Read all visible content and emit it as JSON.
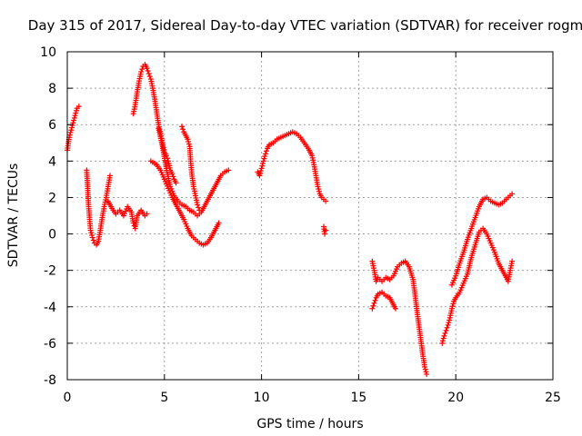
{
  "chart_data": {
    "type": "scatter",
    "title": "Day 315 of 2017, Sidereal Day-to-day VTEC variation (SDTVAR) for receiver rogm",
    "xlabel": "GPS time / hours",
    "ylabel": "SDTVAR / TECUs",
    "xlim": [
      0,
      25
    ],
    "ylim": [
      -8,
      10
    ],
    "xticks": [
      0,
      5,
      10,
      15,
      20,
      25
    ],
    "yticks": [
      -8,
      -6,
      -4,
      -2,
      0,
      2,
      4,
      6,
      8,
      10
    ],
    "grid": true,
    "marker": "plus",
    "marker_color": "#ff0000",
    "series": [
      {
        "segments": [
          [
            [
              0.0,
              4.6
            ],
            [
              0.1,
              5.3
            ],
            [
              0.2,
              5.7
            ],
            [
              0.3,
              6.1
            ],
            [
              0.4,
              6.5
            ],
            [
              0.5,
              6.9
            ],
            [
              0.6,
              7.0
            ]
          ],
          [
            [
              1.0,
              3.5
            ],
            [
              1.05,
              2.5
            ],
            [
              1.1,
              1.5
            ],
            [
              1.15,
              0.8
            ],
            [
              1.2,
              0.2
            ],
            [
              1.3,
              -0.2
            ],
            [
              1.4,
              -0.5
            ],
            [
              1.5,
              -0.6
            ],
            [
              1.6,
              -0.4
            ],
            [
              1.7,
              0.2
            ],
            [
              1.8,
              0.9
            ],
            [
              1.9,
              1.5
            ],
            [
              2.0,
              2.0
            ],
            [
              2.1,
              2.6
            ],
            [
              2.2,
              3.2
            ]
          ],
          [
            [
              2.1,
              1.8
            ],
            [
              2.3,
              1.4
            ],
            [
              2.5,
              1.1
            ],
            [
              2.7,
              1.3
            ],
            [
              2.9,
              1.0
            ],
            [
              3.1,
              1.5
            ],
            [
              3.3,
              1.2
            ],
            [
              3.4,
              0.6
            ],
            [
              3.5,
              0.3
            ],
            [
              3.6,
              1.0
            ],
            [
              3.8,
              1.3
            ],
            [
              4.0,
              1.0
            ],
            [
              4.1,
              1.1
            ]
          ],
          [
            [
              3.4,
              6.6
            ],
            [
              3.5,
              7.1
            ],
            [
              3.6,
              7.8
            ],
            [
              3.7,
              8.4
            ],
            [
              3.8,
              8.9
            ],
            [
              3.9,
              9.2
            ],
            [
              4.0,
              9.3
            ],
            [
              4.1,
              9.1
            ],
            [
              4.2,
              8.8
            ],
            [
              4.3,
              8.5
            ],
            [
              4.4,
              8.0
            ],
            [
              4.5,
              7.4
            ],
            [
              4.6,
              6.7
            ],
            [
              4.7,
              6.0
            ],
            [
              4.8,
              5.5
            ],
            [
              4.9,
              5.0
            ],
            [
              5.0,
              4.5
            ],
            [
              5.1,
              4.3
            ],
            [
              5.2,
              4.0
            ],
            [
              5.3,
              3.5
            ],
            [
              5.4,
              3.3
            ],
            [
              5.5,
              3.0
            ],
            [
              5.6,
              2.8
            ]
          ],
          [
            [
              4.3,
              4.0
            ],
            [
              4.6,
              3.8
            ],
            [
              4.8,
              3.5
            ],
            [
              5.0,
              3.0
            ],
            [
              5.2,
              2.5
            ],
            [
              5.4,
              2.0
            ],
            [
              5.6,
              1.6
            ],
            [
              5.8,
              1.2
            ],
            [
              6.0,
              0.8
            ],
            [
              6.2,
              0.3
            ],
            [
              6.4,
              -0.1
            ],
            [
              6.6,
              -0.3
            ],
            [
              6.8,
              -0.5
            ],
            [
              7.0,
              -0.6
            ],
            [
              7.2,
              -0.5
            ],
            [
              7.4,
              -0.2
            ],
            [
              7.6,
              0.2
            ],
            [
              7.8,
              0.6
            ]
          ],
          [
            [
              4.7,
              5.8
            ],
            [
              4.9,
              4.8
            ],
            [
              5.1,
              3.6
            ],
            [
              5.3,
              2.6
            ],
            [
              5.5,
              2.1
            ],
            [
              5.7,
              1.8
            ],
            [
              5.9,
              1.6
            ],
            [
              6.1,
              1.5
            ],
            [
              6.3,
              1.3
            ],
            [
              6.5,
              1.2
            ],
            [
              6.7,
              1.0
            ],
            [
              6.9,
              1.2
            ],
            [
              7.1,
              1.6
            ],
            [
              7.3,
              2.0
            ],
            [
              7.5,
              2.4
            ],
            [
              7.7,
              2.8
            ],
            [
              7.9,
              3.2
            ],
            [
              8.1,
              3.4
            ],
            [
              8.3,
              3.5
            ]
          ],
          [
            [
              5.9,
              5.9
            ],
            [
              6.0,
              5.6
            ],
            [
              6.1,
              5.4
            ],
            [
              6.2,
              5.2
            ],
            [
              6.3,
              4.8
            ],
            [
              6.35,
              4.0
            ],
            [
              6.4,
              3.4
            ],
            [
              6.5,
              2.6
            ],
            [
              6.6,
              2.1
            ],
            [
              6.7,
              1.6
            ],
            [
              6.8,
              1.3
            ]
          ],
          [
            [
              9.8,
              3.4
            ],
            [
              9.9,
              3.2
            ],
            [
              10.0,
              3.6
            ],
            [
              10.1,
              4.0
            ],
            [
              10.2,
              4.4
            ],
            [
              10.3,
              4.7
            ],
            [
              10.4,
              4.9
            ],
            [
              10.6,
              5.0
            ],
            [
              10.8,
              5.2
            ],
            [
              11.0,
              5.3
            ],
            [
              11.2,
              5.4
            ],
            [
              11.4,
              5.5
            ],
            [
              11.6,
              5.6
            ],
            [
              11.8,
              5.5
            ],
            [
              12.0,
              5.3
            ],
            [
              12.2,
              5.0
            ],
            [
              12.4,
              4.7
            ],
            [
              12.6,
              4.3
            ],
            [
              12.7,
              3.8
            ],
            [
              12.8,
              3.2
            ],
            [
              12.9,
              2.6
            ],
            [
              13.0,
              2.2
            ],
            [
              13.1,
              2.0
            ],
            [
              13.2,
              1.9
            ],
            [
              13.3,
              1.8
            ]
          ],
          [
            [
              13.2,
              0.4
            ],
            [
              13.25,
              0.0
            ],
            [
              13.3,
              0.2
            ]
          ],
          [
            [
              15.7,
              -1.5
            ],
            [
              15.8,
              -2.0
            ],
            [
              15.9,
              -2.6
            ],
            [
              16.0,
              -2.4
            ],
            [
              16.2,
              -2.6
            ],
            [
              16.4,
              -2.4
            ],
            [
              16.6,
              -2.5
            ],
            [
              16.8,
              -2.3
            ],
            [
              17.0,
              -1.8
            ],
            [
              17.2,
              -1.6
            ],
            [
              17.4,
              -1.5
            ],
            [
              17.6,
              -1.8
            ],
            [
              17.8,
              -2.5
            ],
            [
              17.9,
              -3.3
            ],
            [
              18.0,
              -4.2
            ],
            [
              18.1,
              -5.0
            ],
            [
              18.2,
              -5.8
            ],
            [
              18.3,
              -6.6
            ],
            [
              18.4,
              -7.3
            ],
            [
              18.5,
              -7.7
            ]
          ],
          [
            [
              15.7,
              -4.1
            ],
            [
              15.8,
              -3.8
            ],
            [
              15.9,
              -3.5
            ],
            [
              16.0,
              -3.3
            ],
            [
              16.2,
              -3.2
            ],
            [
              16.4,
              -3.4
            ],
            [
              16.6,
              -3.5
            ],
            [
              16.8,
              -3.9
            ],
            [
              16.9,
              -4.1
            ]
          ],
          [
            [
              19.3,
              -6.0
            ],
            [
              19.4,
              -5.6
            ],
            [
              19.5,
              -5.3
            ],
            [
              19.6,
              -5.0
            ],
            [
              19.7,
              -4.6
            ],
            [
              19.8,
              -4.1
            ],
            [
              19.9,
              -3.7
            ],
            [
              20.0,
              -3.5
            ],
            [
              20.2,
              -3.2
            ],
            [
              20.4,
              -2.7
            ],
            [
              20.6,
              -2.2
            ],
            [
              20.8,
              -1.3
            ],
            [
              21.0,
              -0.6
            ],
            [
              21.2,
              0.1
            ],
            [
              21.4,
              0.3
            ],
            [
              21.6,
              0.0
            ],
            [
              21.8,
              -0.5
            ],
            [
              22.0,
              -1.0
            ],
            [
              22.2,
              -1.6
            ],
            [
              22.4,
              -2.0
            ],
            [
              22.6,
              -2.4
            ],
            [
              22.7,
              -2.6
            ],
            [
              22.8,
              -2.0
            ],
            [
              22.9,
              -1.5
            ]
          ],
          [
            [
              19.8,
              -2.8
            ],
            [
              20.0,
              -2.3
            ],
            [
              20.2,
              -1.6
            ],
            [
              20.4,
              -1.0
            ],
            [
              20.6,
              -0.3
            ],
            [
              20.8,
              0.3
            ],
            [
              21.0,
              0.9
            ],
            [
              21.2,
              1.5
            ],
            [
              21.4,
              1.9
            ],
            [
              21.6,
              2.0
            ],
            [
              21.8,
              1.8
            ],
            [
              22.0,
              1.7
            ],
            [
              22.2,
              1.6
            ],
            [
              22.4,
              1.7
            ],
            [
              22.6,
              1.9
            ],
            [
              22.8,
              2.1
            ],
            [
              22.9,
              2.2
            ]
          ]
        ]
      }
    ]
  }
}
